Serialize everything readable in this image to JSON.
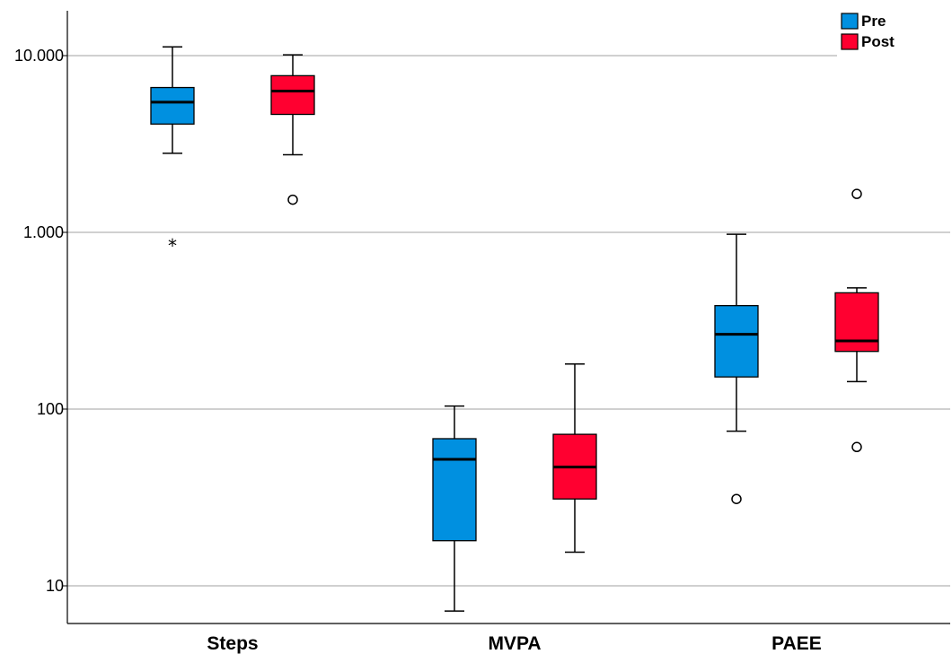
{
  "chart_data": {
    "type": "boxplot",
    "title": "",
    "xlabel": "",
    "ylabel": "",
    "yscale": "log",
    "ylim": [
      6,
      18000
    ],
    "yticks": [
      10,
      100,
      1000,
      10000
    ],
    "ytick_labels": [
      "10",
      "100",
      "1.000",
      "10.000"
    ],
    "categories": [
      "Steps",
      "MVPA",
      "PAEE"
    ],
    "grid": "horizontal",
    "legend_position": "top-right",
    "series": [
      {
        "name": "Pre",
        "color": "#0090e0",
        "boxes": [
          {
            "category": "Steps",
            "whisker_low": 2800,
            "q1": 4100,
            "median": 5450,
            "q3": 6600,
            "whisker_high": 11200,
            "outliers": [],
            "extremes": [
              870
            ]
          },
          {
            "category": "MVPA",
            "whisker_low": 7.2,
            "q1": 18,
            "median": 52,
            "q3": 68,
            "whisker_high": 104,
            "outliers": [],
            "extremes": []
          },
          {
            "category": "PAEE",
            "whisker_low": 75,
            "q1": 152,
            "median": 265,
            "q3": 385,
            "whisker_high": 975,
            "outliers": [
              31
            ],
            "extremes": []
          }
        ]
      },
      {
        "name": "Post",
        "color": "#ff0030",
        "boxes": [
          {
            "category": "Steps",
            "whisker_low": 2750,
            "q1": 4650,
            "median": 6300,
            "q3": 7700,
            "whisker_high": 10100,
            "outliers": [
              1530
            ],
            "extremes": []
          },
          {
            "category": "MVPA",
            "whisker_low": 15.5,
            "q1": 31,
            "median": 47,
            "q3": 72,
            "whisker_high": 180,
            "outliers": [],
            "extremes": []
          },
          {
            "category": "PAEE",
            "whisker_low": 143,
            "q1": 212,
            "median": 243,
            "q3": 455,
            "whisker_high": 485,
            "outliers": [
              61,
              1650
            ],
            "extremes": []
          }
        ]
      }
    ]
  }
}
